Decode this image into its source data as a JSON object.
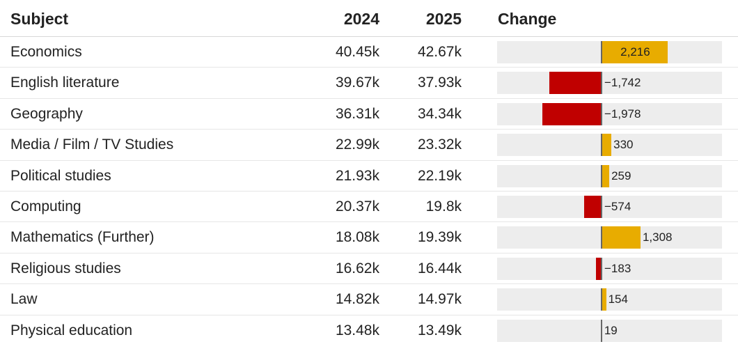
{
  "table": {
    "headers": {
      "subject": "Subject",
      "year1": "2024",
      "year2": "2025",
      "change": "Change"
    }
  },
  "colors": {
    "positive": "#e8ac00",
    "negative": "#c00000",
    "track": "#ededed",
    "zero_line": "#666666"
  },
  "chart_data": {
    "type": "table",
    "columns": [
      "Subject",
      "2024",
      "2025",
      "Change"
    ],
    "axis_range": [
      -3500,
      4000
    ],
    "rows": [
      {
        "subject": "Economics",
        "y2024": "40.45k",
        "y2025": "42.67k",
        "change": 2216,
        "change_label": "2,216"
      },
      {
        "subject": "English literature",
        "y2024": "39.67k",
        "y2025": "37.93k",
        "change": -1742,
        "change_label": "−1,742"
      },
      {
        "subject": "Geography",
        "y2024": "36.31k",
        "y2025": "34.34k",
        "change": -1978,
        "change_label": "−1,978"
      },
      {
        "subject": "Media / Film / TV Studies",
        "y2024": "22.99k",
        "y2025": "23.32k",
        "change": 330,
        "change_label": "330"
      },
      {
        "subject": "Political studies",
        "y2024": "21.93k",
        "y2025": "22.19k",
        "change": 259,
        "change_label": "259"
      },
      {
        "subject": "Computing",
        "y2024": "20.37k",
        "y2025": "19.8k",
        "change": -574,
        "change_label": "−574"
      },
      {
        "subject": "Mathematics (Further)",
        "y2024": "18.08k",
        "y2025": "19.39k",
        "change": 1308,
        "change_label": "1,308"
      },
      {
        "subject": "Religious studies",
        "y2024": "16.62k",
        "y2025": "16.44k",
        "change": -183,
        "change_label": "−183"
      },
      {
        "subject": "Law",
        "y2024": "14.82k",
        "y2025": "14.97k",
        "change": 154,
        "change_label": "154"
      },
      {
        "subject": "Physical education",
        "y2024": "13.48k",
        "y2025": "13.49k",
        "change": 19,
        "change_label": "19"
      }
    ]
  }
}
